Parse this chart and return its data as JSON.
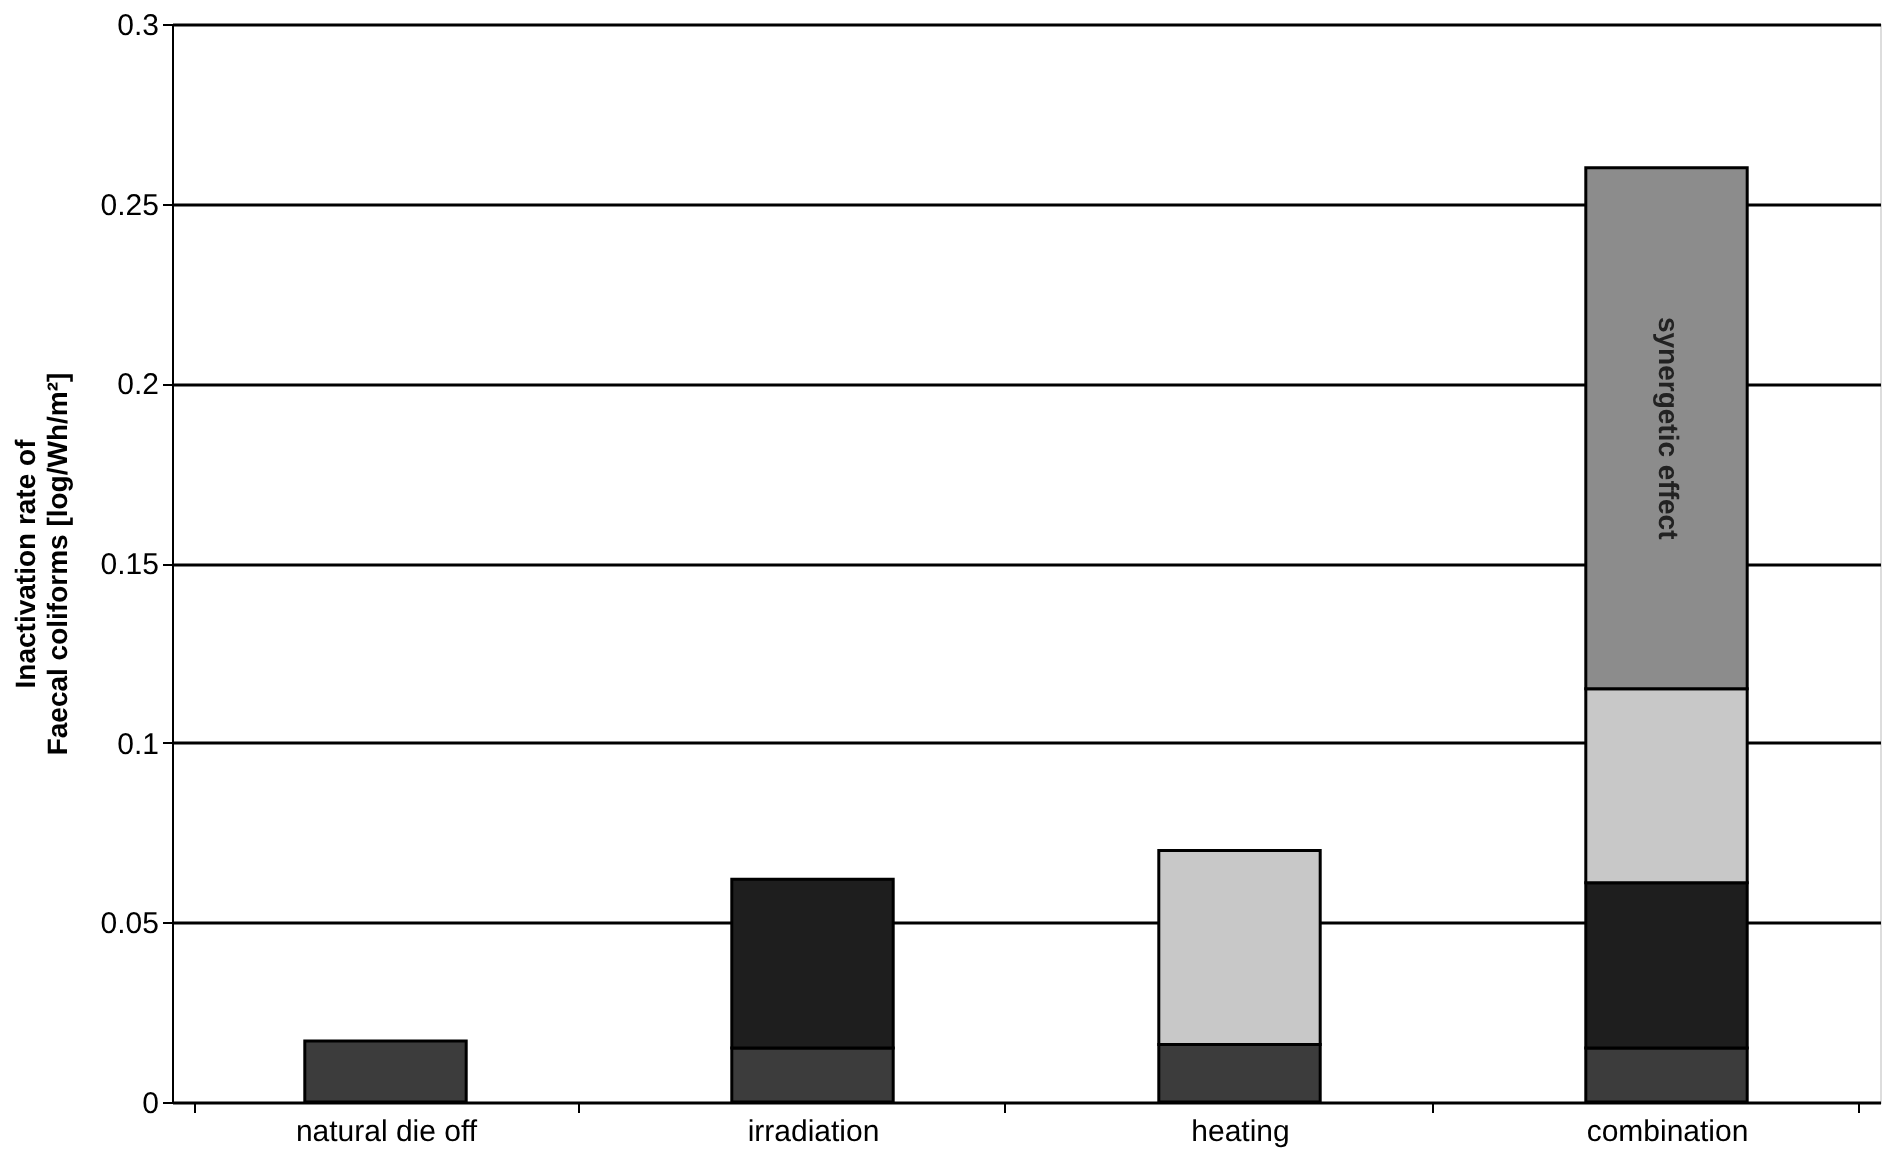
{
  "chart_data": {
    "type": "bar",
    "stacked": true,
    "ylabel": "Inactivation rate of\nFaecal coliforms [log/Wh/m²]",
    "categories": [
      "natural die off",
      "irradiation",
      "heating",
      "combination"
    ],
    "series": [
      {
        "color": "#3c3c3c",
        "values": [
          0.017,
          0.015,
          0.016,
          0.015
        ]
      },
      {
        "color": "#1e1e1e",
        "values": [
          null,
          0.047,
          null,
          0.046
        ]
      },
      {
        "color": "#c8c8c8",
        "values": [
          null,
          null,
          0.054,
          0.054
        ]
      },
      {
        "name": "synergetic effect",
        "color": "#8c8c8c",
        "values": [
          null,
          null,
          null,
          0.145
        ]
      }
    ],
    "ylim": [
      0,
      0.3
    ],
    "yticks": [
      0,
      0.05,
      0.1,
      0.15,
      0.2,
      0.25,
      0.3
    ],
    "grid": "y",
    "legend": false
  }
}
